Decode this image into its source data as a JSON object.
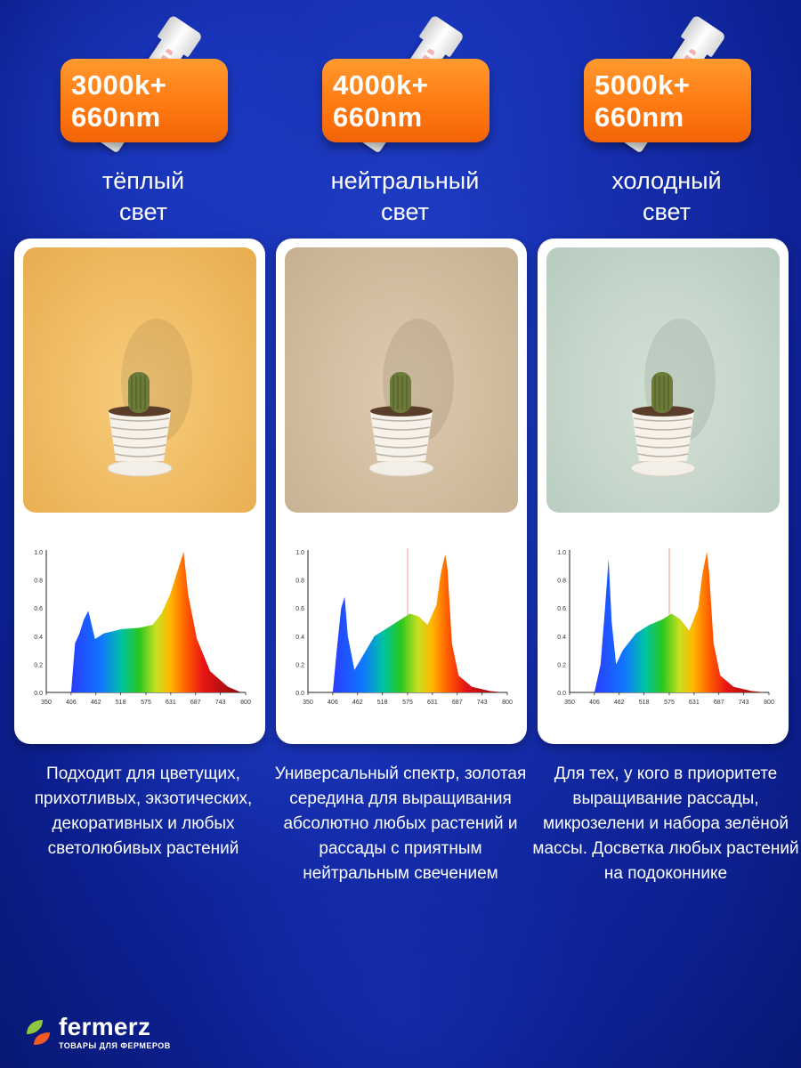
{
  "colors": {
    "badge": "#ff7a12",
    "background": "#1630b3",
    "card": "#ffffff"
  },
  "variants": [
    {
      "badge_line1": "3000k+",
      "badge_line2": "660nm",
      "light_line1": "тёплый",
      "light_line2": "свет",
      "description": "Подходит для цветущих, прихотливых, экзотических, декоративных и любых светолюбивых растений",
      "photo_tint": "#f2c06a"
    },
    {
      "badge_line1": "4000k+",
      "badge_line2": "660nm",
      "light_line1": "нейтральный",
      "light_line2": "свет",
      "description": "Универсальный спектр, золотая середина для выращивания абсолютно любых растений и рассады с приятным нейтральным свечением",
      "photo_tint": "#d4bfa2"
    },
    {
      "badge_line1": "5000k+",
      "badge_line2": "660nm",
      "light_line1": "холодный",
      "light_line2": "свет",
      "description": "Для тех, у кого в приоритете выращивание рассады, микрозелени и набора зелёной массы. Досветка любых растений на подоконнике",
      "photo_tint": "#c8d8cd"
    }
  ],
  "chart_data": [
    {
      "type": "area",
      "x_ticks": [
        "350",
        "406",
        "462",
        "518",
        "575",
        "631",
        "687",
        "743",
        "800"
      ],
      "y_ticks": [
        "0.0",
        "0.2",
        "0.4",
        "0.6",
        "0.8",
        "1.0"
      ],
      "xlim": [
        350,
        800
      ],
      "ylim": [
        0,
        1.0
      ],
      "x": [
        406,
        415,
        425,
        435,
        445,
        460,
        480,
        520,
        560,
        590,
        610,
        630,
        645,
        655,
        660,
        670,
        690,
        720,
        760,
        790
      ],
      "y": [
        0.0,
        0.35,
        0.42,
        0.52,
        0.58,
        0.38,
        0.42,
        0.45,
        0.46,
        0.48,
        0.56,
        0.7,
        0.85,
        0.95,
        1.0,
        0.7,
        0.38,
        0.15,
        0.04,
        0.0
      ]
    },
    {
      "type": "area",
      "x_ticks": [
        "350",
        "406",
        "462",
        "518",
        "575",
        "631",
        "687",
        "743",
        "800"
      ],
      "y_ticks": [
        "0.0",
        "0.2",
        "0.4",
        "0.6",
        "0.8",
        "1.0"
      ],
      "xlim": [
        350,
        800
      ],
      "ylim": [
        0,
        1.0
      ],
      "x": [
        406,
        415,
        425,
        433,
        440,
        455,
        470,
        500,
        530,
        560,
        580,
        600,
        620,
        640,
        650,
        660,
        665,
        675,
        690,
        720,
        760,
        790
      ],
      "y": [
        0.0,
        0.3,
        0.6,
        0.68,
        0.4,
        0.16,
        0.24,
        0.4,
        0.46,
        0.52,
        0.56,
        0.54,
        0.48,
        0.62,
        0.85,
        0.98,
        0.88,
        0.35,
        0.12,
        0.04,
        0.01,
        0.0
      ]
    },
    {
      "type": "area",
      "x_ticks": [
        "350",
        "406",
        "462",
        "518",
        "575",
        "631",
        "687",
        "743",
        "800"
      ],
      "y_ticks": [
        "0.0",
        "0.2",
        "0.4",
        "0.6",
        "0.8",
        "1.0"
      ],
      "xlim": [
        350,
        800
      ],
      "ylim": [
        0,
        1.0
      ],
      "x": [
        406,
        420,
        430,
        438,
        445,
        455,
        470,
        500,
        530,
        560,
        580,
        600,
        620,
        640,
        650,
        660,
        665,
        675,
        690,
        720,
        760,
        790
      ],
      "y": [
        0.0,
        0.2,
        0.6,
        0.95,
        0.5,
        0.2,
        0.3,
        0.42,
        0.48,
        0.52,
        0.56,
        0.52,
        0.44,
        0.6,
        0.85,
        1.0,
        0.85,
        0.35,
        0.12,
        0.04,
        0.01,
        0.0
      ]
    }
  ],
  "brand": {
    "name": "fermerz",
    "tagline": "ТОВАРЫ ДЛЯ ФЕРМЕРОВ"
  }
}
